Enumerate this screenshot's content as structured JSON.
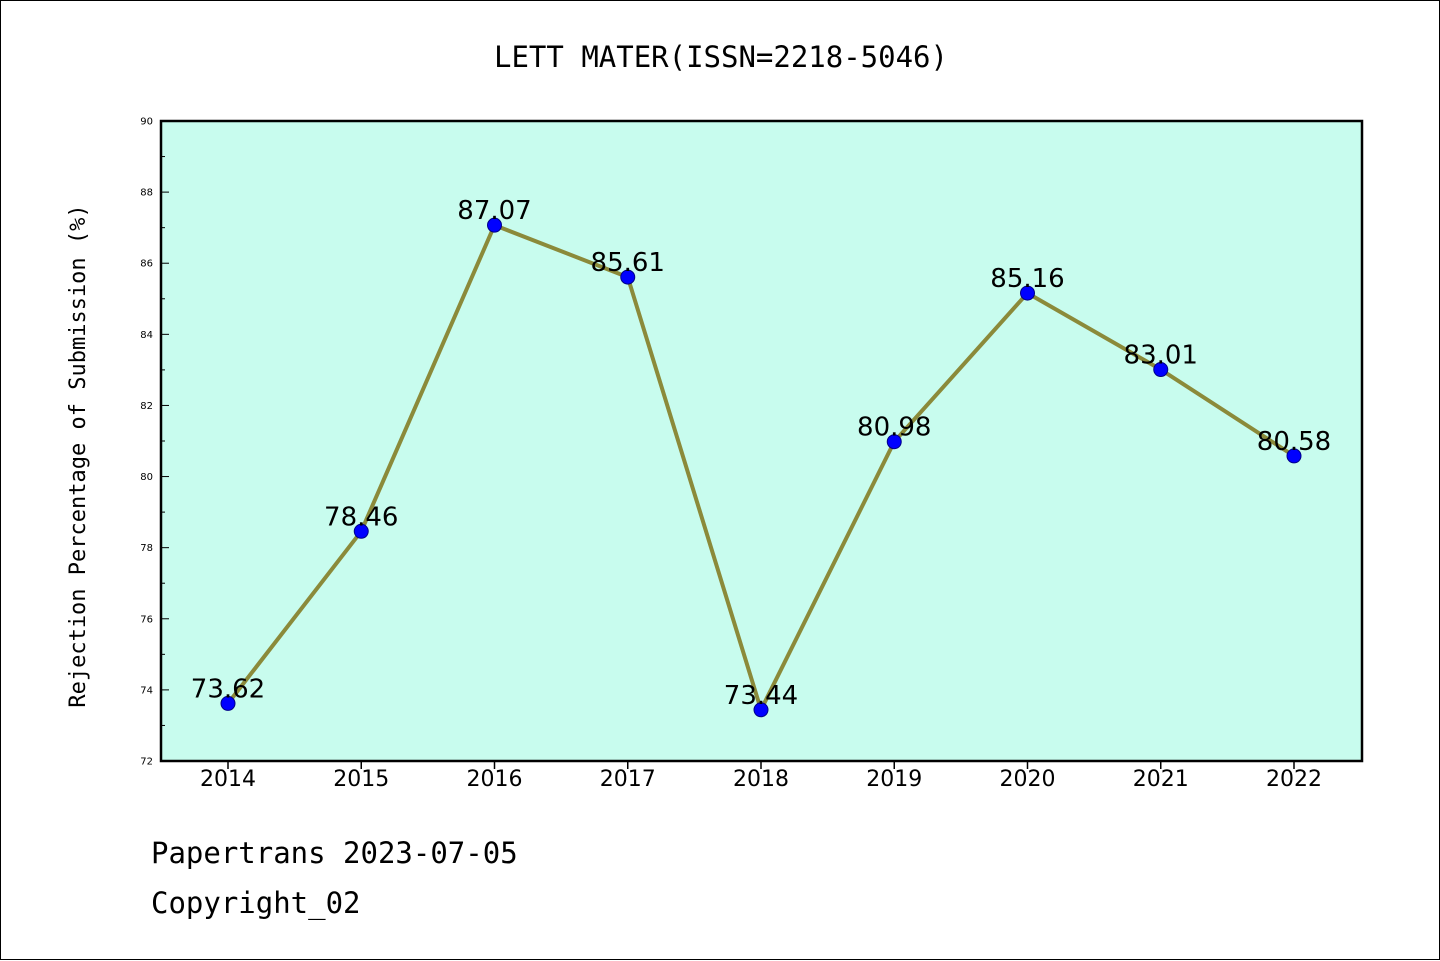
{
  "chart_data": {
    "type": "line",
    "title": "LETT MATER(ISSN=2218-5046)",
    "xlabel": "",
    "ylabel": "Rejection Percentage of Submission (%)",
    "categories": [
      "2014",
      "2015",
      "2016",
      "2017",
      "2018",
      "2019",
      "2020",
      "2021",
      "2022"
    ],
    "series": [
      {
        "values": [
          73.62,
          78.46,
          87.07,
          85.61,
          73.44,
          80.98,
          85.16,
          83.01,
          80.58
        ]
      }
    ],
    "data_labels": [
      "73.62",
      "78.46",
      "87.07",
      "85.61",
      "73.44",
      "80.98",
      "85.16",
      "83.01",
      "80.58"
    ],
    "ylim": [
      72,
      90
    ],
    "yticks": [
      72,
      74,
      76,
      78,
      80,
      82,
      84,
      86,
      88,
      90
    ],
    "grid": false,
    "legend": "none",
    "colors": {
      "plot_background": "#c8fcee",
      "line": "#8b8a3a",
      "marker": "#0000ff",
      "marker_edge": "#000088"
    }
  },
  "footer": {
    "line1": "Papertrans 2023-07-05",
    "line2": "Copyright_02"
  }
}
